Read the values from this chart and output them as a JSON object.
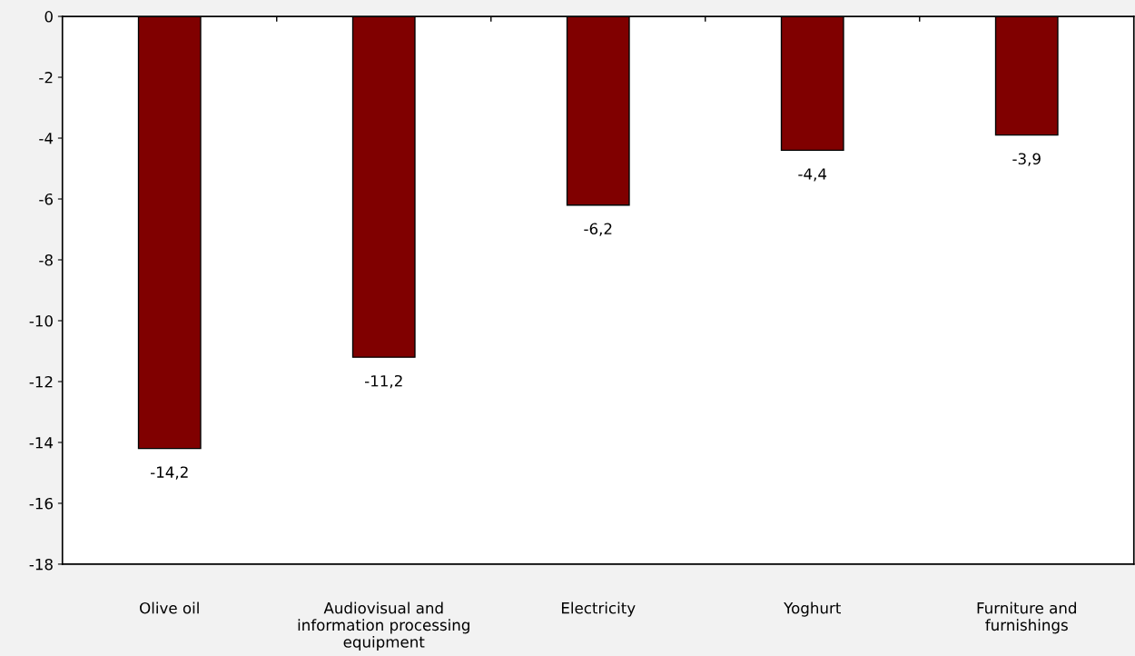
{
  "chart_data": {
    "type": "bar",
    "categories": [
      "Olive oil",
      "Audiovisual and\ninformation processing\nequipment",
      "Electricity",
      "Yoghurt",
      "Furniture and\nfurnishings"
    ],
    "values": [
      -14.2,
      -11.2,
      -6.2,
      -4.4,
      -3.9
    ],
    "value_labels": [
      "-14,2",
      "-11,2",
      "-6,2",
      "-4,4",
      "-3,9"
    ],
    "color": "#800000",
    "ylim": [
      -18,
      0
    ],
    "yticks": [
      {
        "value": -18,
        "label": "-18"
      },
      {
        "value": -16,
        "label": "-16"
      },
      {
        "value": -14,
        "label": "-14"
      },
      {
        "value": -12,
        "label": "-12"
      },
      {
        "value": -10,
        "label": "-10"
      },
      {
        "value": -8,
        "label": "-8"
      },
      {
        "value": -6,
        "label": "-6"
      },
      {
        "value": -4,
        "label": "-4"
      },
      {
        "value": -2,
        "label": "-2"
      },
      {
        "value": 0,
        "label": "0"
      }
    ],
    "grid": false
  }
}
